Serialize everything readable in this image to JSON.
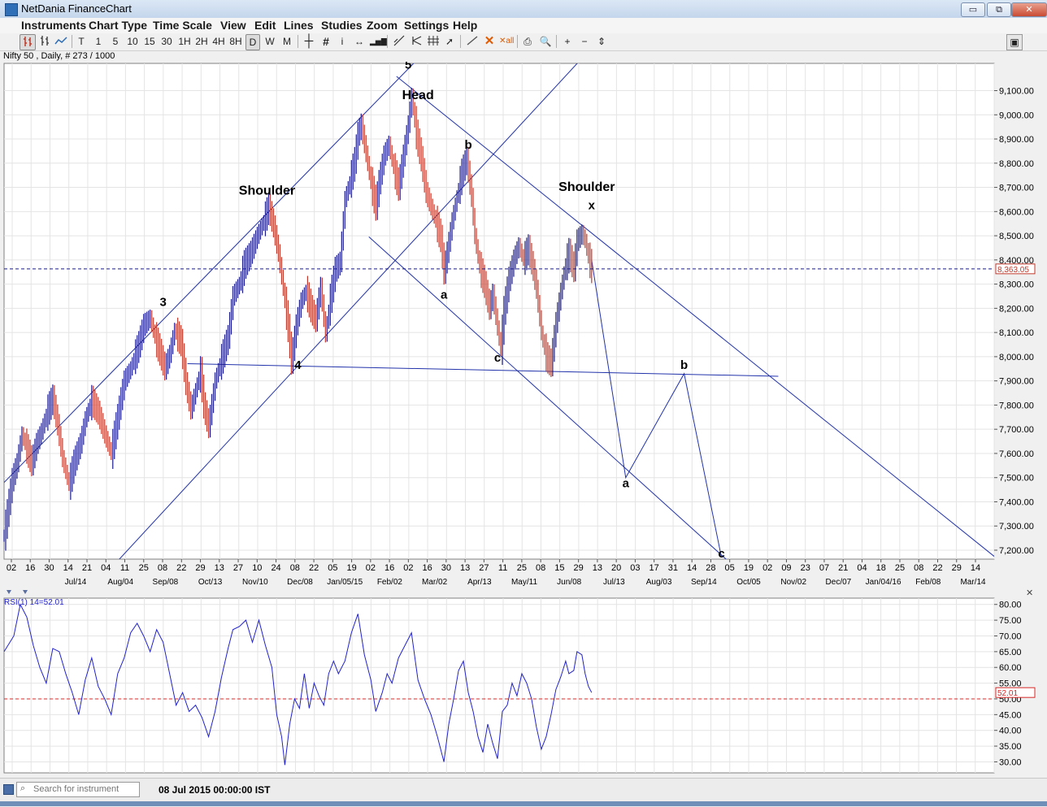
{
  "window": {
    "title": "NetDania FinanceChart",
    "minimize": "▭",
    "restore": "⧉",
    "close": "✕"
  },
  "menu": [
    "Instruments",
    "Chart Type",
    "Time Scale",
    "View",
    "Edit",
    "Lines",
    "Studies",
    "Zoom",
    "Settings",
    "Help"
  ],
  "toolbar": {
    "periods": [
      "T",
      "1",
      "5",
      "10",
      "15",
      "30",
      "1H",
      "2H",
      "4H",
      "8H",
      "D",
      "W",
      "M"
    ],
    "selected_period": "D"
  },
  "instrument_label": "Nifty 50 , Daily, # 273 / 1000",
  "search": {
    "placeholder": "Search for instrument"
  },
  "status_date": "08 Jul 2015 00:00:00 IST",
  "chart_data": [
    {
      "type": "line",
      "title": "Nifty 50 , Daily",
      "ylim": [
        7140,
        9190
      ],
      "grid": true,
      "y_ticks": [
        "7,200.00",
        "7,300.00",
        "7,400.00",
        "7,500.00",
        "7,600.00",
        "7,700.00",
        "7,800.00",
        "7,900.00",
        "8,000.00",
        "8,100.00",
        "8,200.00",
        "8,300.00",
        "8,400.00",
        "8,500.00",
        "8,600.00",
        "8,700.00",
        "8,800.00",
        "8,900.00",
        "9,000.00",
        "9,100.00"
      ],
      "x_day_labels": [
        "02",
        "16",
        "30",
        "14",
        "21",
        "04",
        "11",
        "25",
        "08",
        "22",
        "29",
        "13",
        "27",
        "10",
        "24",
        "08",
        "22",
        "05",
        "19",
        "02",
        "16",
        "02",
        "16",
        "30",
        "13",
        "27",
        "11",
        "25",
        "08",
        "15",
        "29",
        "13",
        "20",
        "03",
        "17",
        "31",
        "14",
        "28",
        "05",
        "19",
        "02",
        "09",
        "23",
        "07",
        "21",
        "04",
        "18",
        "25",
        "08",
        "22",
        "29",
        "14"
      ],
      "x_month_labels": [
        "Jul/14",
        "Aug/04",
        "Sep/08",
        "Oct/13",
        "Nov/10",
        "Dec/08",
        "Jan/05/15",
        "Feb/02",
        "Mar/02",
        "Apr/13",
        "May/11",
        "Jun/08",
        "Jul/13",
        "Aug/03",
        "Sep/14",
        "Oct/05",
        "Nov/02",
        "Dec/07",
        "Jan/04/16",
        "Feb/08",
        "Mar/14"
      ],
      "current_price": 8363.05,
      "current_price_label": "8,363.05",
      "price_path": [
        [
          0,
          7260
        ],
        [
          5,
          7490
        ],
        [
          8,
          7560
        ],
        [
          11,
          7680
        ],
        [
          14,
          7620
        ],
        [
          17,
          7560
        ],
        [
          20,
          7640
        ],
        [
          23,
          7690
        ],
        [
          27,
          7780
        ],
        [
          30,
          7830
        ],
        [
          33,
          7720
        ],
        [
          36,
          7580
        ],
        [
          40,
          7470
        ],
        [
          43,
          7560
        ],
        [
          47,
          7640
        ],
        [
          50,
          7740
        ],
        [
          54,
          7820
        ],
        [
          58,
          7770
        ],
        [
          62,
          7680
        ],
        [
          66,
          7600
        ],
        [
          70,
          7750
        ],
        [
          74,
          7900
        ],
        [
          78,
          7950
        ],
        [
          83,
          8050
        ],
        [
          86,
          8130
        ],
        [
          90,
          8160
        ],
        [
          93,
          8080
        ],
        [
          96,
          8020
        ],
        [
          99,
          7950
        ],
        [
          102,
          8010
        ],
        [
          105,
          8110
        ],
        [
          109,
          8060
        ],
        [
          112,
          7890
        ],
        [
          115,
          7780
        ],
        [
          118,
          7860
        ],
        [
          121,
          7940
        ],
        [
          123,
          7800
        ],
        [
          126,
          7710
        ],
        [
          130,
          7900
        ],
        [
          134,
          7990
        ],
        [
          138,
          8080
        ],
        [
          141,
          8250
        ],
        [
          145,
          8300
        ],
        [
          148,
          8380
        ],
        [
          152,
          8430
        ],
        [
          156,
          8500
        ],
        [
          160,
          8560
        ],
        [
          163,
          8620
        ],
        [
          166,
          8540
        ],
        [
          169,
          8430
        ],
        [
          172,
          8280
        ],
        [
          175,
          8120
        ],
        [
          177,
          7980
        ],
        [
          180,
          8130
        ],
        [
          183,
          8230
        ],
        [
          186,
          8270
        ],
        [
          189,
          8200
        ],
        [
          192,
          8150
        ],
        [
          195,
          8290
        ],
        [
          198,
          8090
        ],
        [
          201,
          8240
        ],
        [
          204,
          8360
        ],
        [
          207,
          8390
        ],
        [
          210,
          8650
        ],
        [
          213,
          8720
        ],
        [
          216,
          8810
        ],
        [
          218,
          8920
        ],
        [
          220,
          8960
        ],
        [
          223,
          8840
        ],
        [
          226,
          8720
        ],
        [
          229,
          8620
        ],
        [
          231,
          8720
        ],
        [
          234,
          8830
        ],
        [
          237,
          8880
        ],
        [
          240,
          8780
        ],
        [
          243,
          8700
        ],
        [
          246,
          8830
        ],
        [
          249,
          8960
        ],
        [
          251,
          9080
        ],
        [
          254,
          8920
        ],
        [
          257,
          8820
        ],
        [
          260,
          8680
        ],
        [
          263,
          8620
        ],
        [
          266,
          8560
        ],
        [
          269,
          8490
        ],
        [
          271,
          8350
        ],
        [
          273,
          8430
        ],
        [
          276,
          8560
        ],
        [
          279,
          8660
        ],
        [
          282,
          8760
        ],
        [
          285,
          8820
        ],
        [
          288,
          8660
        ],
        [
          290,
          8500
        ],
        [
          293,
          8370
        ],
        [
          296,
          8300
        ],
        [
          299,
          8200
        ],
        [
          301,
          8260
        ],
        [
          304,
          8120
        ],
        [
          306,
          8030
        ],
        [
          308,
          8190
        ],
        [
          311,
          8320
        ],
        [
          314,
          8400
        ],
        [
          317,
          8460
        ],
        [
          320,
          8400
        ],
        [
          323,
          8450
        ],
        [
          326,
          8360
        ],
        [
          328,
          8280
        ],
        [
          331,
          8100
        ],
        [
          334,
          8000
        ],
        [
          337,
          7970
        ],
        [
          340,
          8140
        ],
        [
          343,
          8270
        ],
        [
          346,
          8380
        ],
        [
          348,
          8430
        ],
        [
          351,
          8360
        ],
        [
          353,
          8480
        ],
        [
          356,
          8510
        ],
        [
          358,
          8480
        ],
        [
          360,
          8410
        ],
        [
          362,
          8363
        ]
      ],
      "rsi": {
        "label": "RSI(1) 14=52.01",
        "value": 52.01,
        "value_label": "52.01",
        "level_line": 50,
        "ylim": [
          26.5,
          82
        ],
        "y_ticks": [
          "30.00",
          "35.00",
          "40.00",
          "45.00",
          "50.00",
          "55.00",
          "60.00",
          "65.00",
          "70.00",
          "75.00",
          "80.00"
        ],
        "values": [
          [
            0,
            65
          ],
          [
            6,
            70
          ],
          [
            10,
            80
          ],
          [
            14,
            76
          ],
          [
            18,
            67
          ],
          [
            22,
            60
          ],
          [
            26,
            55
          ],
          [
            30,
            66
          ],
          [
            34,
            65
          ],
          [
            38,
            58
          ],
          [
            42,
            52
          ],
          [
            46,
            45
          ],
          [
            50,
            56
          ],
          [
            54,
            63
          ],
          [
            58,
            54
          ],
          [
            62,
            50
          ],
          [
            66,
            45
          ],
          [
            70,
            58
          ],
          [
            74,
            63
          ],
          [
            78,
            71
          ],
          [
            82,
            74
          ],
          [
            86,
            70
          ],
          [
            90,
            65
          ],
          [
            94,
            72
          ],
          [
            98,
            68
          ],
          [
            102,
            58
          ],
          [
            106,
            48
          ],
          [
            110,
            52
          ],
          [
            114,
            46
          ],
          [
            118,
            48
          ],
          [
            122,
            44
          ],
          [
            126,
            38
          ],
          [
            130,
            46
          ],
          [
            134,
            57
          ],
          [
            138,
            66
          ],
          [
            141,
            72
          ],
          [
            145,
            73
          ],
          [
            149,
            75
          ],
          [
            153,
            68
          ],
          [
            157,
            75
          ],
          [
            161,
            67
          ],
          [
            165,
            60
          ],
          [
            168,
            45
          ],
          [
            171,
            38
          ],
          [
            173,
            29
          ],
          [
            176,
            42
          ],
          [
            179,
            50
          ],
          [
            182,
            47
          ],
          [
            185,
            58
          ],
          [
            188,
            47
          ],
          [
            191,
            55
          ],
          [
            194,
            51
          ],
          [
            197,
            48
          ],
          [
            200,
            58
          ],
          [
            203,
            62
          ],
          [
            206,
            58
          ],
          [
            210,
            62
          ],
          [
            214,
            71
          ],
          [
            218,
            77
          ],
          [
            222,
            64
          ],
          [
            226,
            56
          ],
          [
            229,
            46
          ],
          [
            233,
            52
          ],
          [
            236,
            58
          ],
          [
            239,
            55
          ],
          [
            243,
            63
          ],
          [
            247,
            67
          ],
          [
            251,
            71
          ],
          [
            255,
            56
          ],
          [
            259,
            50
          ],
          [
            263,
            45
          ],
          [
            267,
            38
          ],
          [
            271,
            30
          ],
          [
            274,
            42
          ],
          [
            277,
            50
          ],
          [
            280,
            59
          ],
          [
            283,
            62
          ],
          [
            286,
            52
          ],
          [
            289,
            46
          ],
          [
            292,
            38
          ],
          [
            295,
            33
          ],
          [
            298,
            42
          ],
          [
            301,
            36
          ],
          [
            304,
            31
          ],
          [
            307,
            46
          ],
          [
            310,
            48
          ],
          [
            313,
            55
          ],
          [
            316,
            51
          ],
          [
            319,
            58
          ],
          [
            322,
            55
          ],
          [
            325,
            50
          ],
          [
            328,
            41
          ],
          [
            331,
            34
          ],
          [
            334,
            38
          ],
          [
            337,
            45
          ],
          [
            340,
            53
          ],
          [
            343,
            57
          ],
          [
            346,
            62
          ],
          [
            348,
            58
          ],
          [
            351,
            59
          ],
          [
            353,
            65
          ],
          [
            356,
            64
          ],
          [
            358,
            58
          ],
          [
            360,
            54
          ],
          [
            362,
            52.01
          ]
        ]
      },
      "annotations": [
        {
          "text": "5",
          "x": 249,
          "y": 9190
        },
        {
          "text": "Head",
          "x": 255,
          "y": 9065
        },
        {
          "text": "b",
          "x": 286,
          "y": 8860
        },
        {
          "text": "Shoulder",
          "x": 162,
          "y": 8670
        },
        {
          "text": "Shoulder",
          "x": 359,
          "y": 8685
        },
        {
          "text": "x",
          "x": 362,
          "y": 8610
        },
        {
          "text": "3",
          "x": 98,
          "y": 8210
        },
        {
          "text": "a",
          "x": 271,
          "y": 8240
        },
        {
          "text": "4",
          "x": 181,
          "y": 7950
        },
        {
          "text": "c",
          "x": 304,
          "y": 7980
        },
        {
          "text": "b",
          "x": 419,
          "y": 7950
        },
        {
          "text": "a",
          "x": 383,
          "y": 7460
        },
        {
          "text": "c",
          "x": 442,
          "y": 7170
        }
      ],
      "trendlines": [
        [
          [
            0,
            7480
          ],
          [
            249,
            9190
          ]
        ],
        [
          [
            72,
            7170
          ],
          [
            350,
            9190
          ]
        ],
        [
          [
            249,
            9120
          ],
          [
            609,
            7180
          ]
        ],
        [
          [
            229,
            8470
          ],
          [
            442,
            7180
          ]
        ],
        [
          [
            120,
            7970
          ],
          [
            470,
            7920
          ]
        ]
      ],
      "projection": [
        [
          362,
          8400
        ],
        [
          383,
          7500
        ],
        [
          419,
          7930
        ],
        [
          442,
          7170
        ]
      ]
    }
  ]
}
